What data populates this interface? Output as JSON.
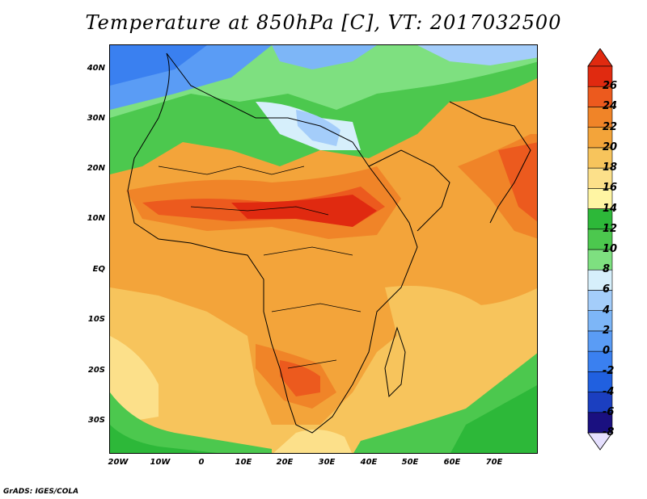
{
  "title": "Temperature at 850hPa [C], VT: 2017032500",
  "credit": "GrADS: IGES/COLA",
  "map": {
    "lat_ticks": [
      "40N",
      "30N",
      "20N",
      "10N",
      "EQ",
      "10S",
      "20S",
      "30S"
    ],
    "lon_ticks": [
      "20W",
      "10W",
      "0",
      "10E",
      "20E",
      "30E",
      "40E",
      "50E",
      "60E",
      "70E"
    ],
    "lon_range": [
      -22,
      80
    ],
    "lat_range": [
      -37,
      45
    ]
  },
  "colorbar": {
    "levels": [
      "-8",
      "-6",
      "-4",
      "-2",
      "0",
      "2",
      "4",
      "6",
      "8",
      "10",
      "12",
      "14",
      "16",
      "18",
      "20",
      "22",
      "24",
      "26"
    ],
    "colors": [
      "#1a1080",
      "#1b3fc0",
      "#2060e0",
      "#3a80f0",
      "#5a9cf5",
      "#7db6f7",
      "#a4cdfa",
      "#d6effb",
      "#7ee080",
      "#4cc84e",
      "#2db839",
      "#fff5a3",
      "#fce08a",
      "#f7c45c",
      "#f3a43a",
      "#f08428",
      "#ec5a1e",
      "#e02a10"
    ]
  }
}
